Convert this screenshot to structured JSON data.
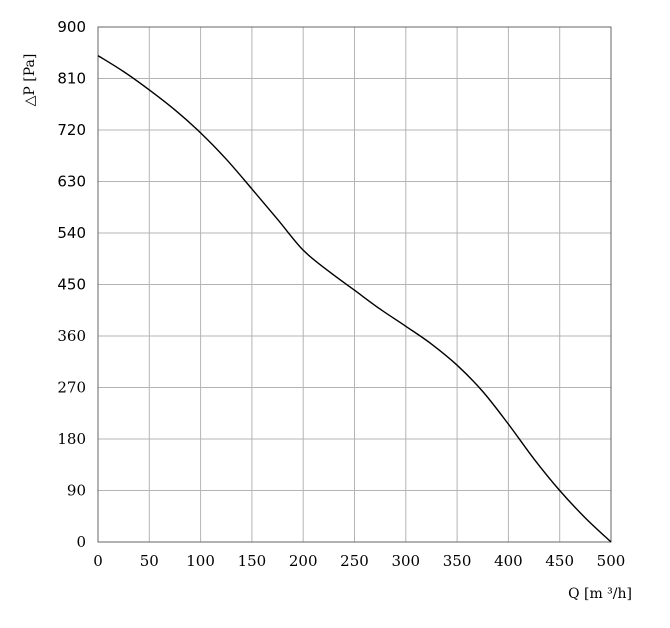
{
  "chart_data": {
    "type": "line",
    "title": "",
    "xlabel": "Q [m ³/h]",
    "ylabel": "△P [Pa]",
    "xlim": [
      0,
      500
    ],
    "ylim": [
      0,
      900
    ],
    "x_ticks": [
      0,
      50,
      100,
      150,
      200,
      250,
      300,
      350,
      400,
      450,
      500
    ],
    "y_ticks": [
      0,
      90,
      180,
      270,
      360,
      450,
      540,
      630,
      720,
      810,
      900
    ],
    "y_ticks_bold": [
      450,
      540,
      630,
      720,
      810,
      900
    ],
    "grid": true,
    "series": [
      {
        "x": [
          0,
          25,
          50,
          75,
          100,
          125,
          150,
          175,
          200,
          225,
          250,
          275,
          300,
          325,
          350,
          375,
          400,
          425,
          450,
          475,
          500
        ],
        "y": [
          850,
          822,
          790,
          755,
          715,
          669,
          617,
          564,
          510,
          473,
          440,
          407,
          377,
          346,
          309,
          263,
          206,
          145,
          90,
          42,
          0
        ]
      }
    ]
  }
}
